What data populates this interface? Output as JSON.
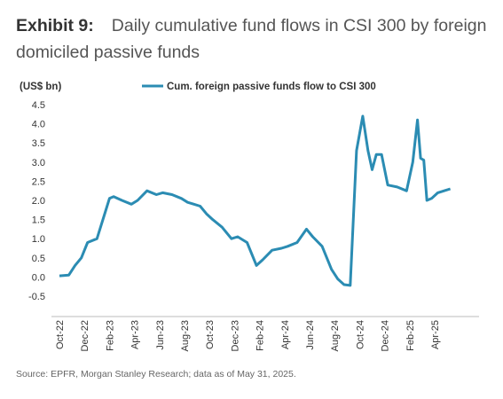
{
  "exhibit_label": "Exhibit 9:",
  "title": "Daily cumulative fund flows in CSI 300 by foreign domiciled passive funds",
  "source": "Source: EPFR, Morgan Stanley Research; data as of May 31, 2025.",
  "chart_data": {
    "type": "line",
    "title": "Daily cumulative fund flows in CSI 300 by foreign domiciled passive funds",
    "ylabel": "(US$ bn)",
    "xlabel": "",
    "ylim": [
      -0.5,
      4.5
    ],
    "yticks": [
      "-0.5",
      "0.0",
      "0.5",
      "1.0",
      "1.5",
      "2.0",
      "2.5",
      "3.0",
      "3.5",
      "4.0",
      "4.5"
    ],
    "xticks": [
      "Oct-22",
      "Dec-22",
      "Feb-23",
      "Apr-23",
      "Jun-23",
      "Aug-23",
      "Oct-23",
      "Dec-23",
      "Feb-24",
      "Apr-24",
      "Jun-24",
      "Aug-24",
      "Oct-24",
      "Dec-24",
      "Feb-25",
      "Apr-25"
    ],
    "grid": false,
    "legend_position": "top",
    "series_color": "#2b8cb3",
    "series": [
      {
        "name": "Cum. foreign passive funds flow to CSI 300",
        "x": [
          "Oct-22",
          "Nov-22",
          "Nov-22",
          "Dec-22",
          "Dec-22",
          "Jan-23",
          "Feb-23",
          "Feb-23",
          "Feb-23",
          "Mar-23",
          "Apr-23",
          "Apr-23",
          "May-23",
          "Jun-23",
          "Jun-23",
          "Jul-23",
          "Aug-23",
          "Aug-23",
          "Sep-23",
          "Sep-23",
          "Oct-23",
          "Oct-23",
          "Nov-23",
          "Dec-23",
          "Dec-23",
          "Jan-24",
          "Feb-24",
          "Feb-24",
          "Mar-24",
          "Apr-24",
          "Apr-24",
          "May-24",
          "Jun-24",
          "Jun-24",
          "Jul-24",
          "Aug-24",
          "Aug-24",
          "Sep-24",
          "Sep-24",
          "Oct-24",
          "Oct-24",
          "Nov-24",
          "Nov-24",
          "Nov-24",
          "Dec-24",
          "Dec-24",
          "Jan-25",
          "Feb-25",
          "Feb-25",
          "Mar-25",
          "Mar-25",
          "Mar-25",
          "Mar-25",
          "Apr-25",
          "Apr-25",
          "May-25",
          "May-25"
        ],
        "y": [
          0.03,
          0.05,
          0.3,
          0.5,
          0.9,
          1.0,
          1.7,
          2.05,
          2.1,
          2.0,
          1.9,
          2.0,
          2.25,
          2.15,
          2.2,
          2.15,
          2.05,
          1.95,
          1.9,
          1.85,
          1.65,
          1.5,
          1.3,
          1.0,
          1.05,
          0.9,
          0.3,
          0.45,
          0.7,
          0.75,
          0.8,
          0.9,
          1.25,
          1.05,
          0.8,
          0.2,
          -0.05,
          -0.2,
          -0.22,
          3.3,
          4.2,
          3.3,
          2.8,
          3.2,
          3.2,
          2.4,
          2.35,
          2.25,
          3.0,
          4.1,
          3.1,
          3.05,
          2.0,
          2.05,
          2.2,
          2.25,
          2.3
        ]
      }
    ]
  }
}
